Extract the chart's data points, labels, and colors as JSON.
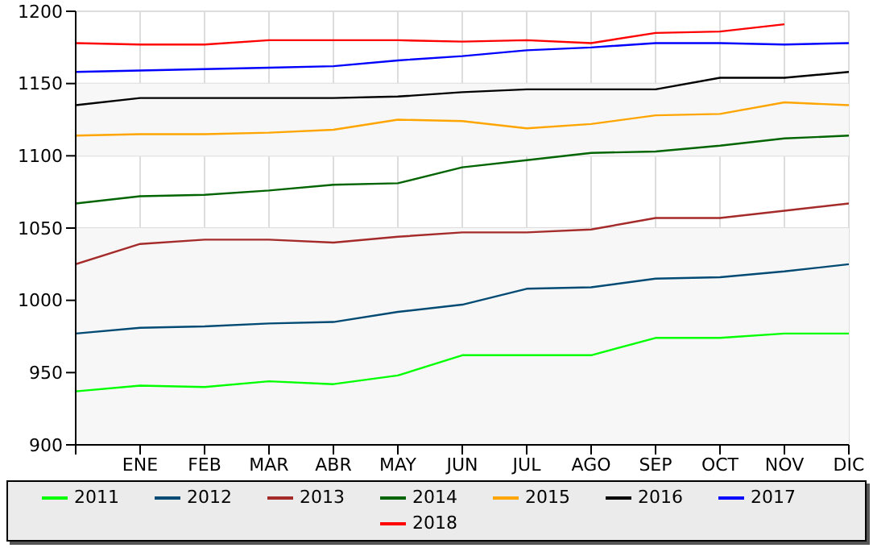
{
  "chart_data": {
    "type": "line",
    "categories": [
      null,
      "ENE",
      "FEB",
      "MAR",
      "ABR",
      "MAY",
      "JUN",
      "JUL",
      "AGO",
      "SEP",
      "OCT",
      "NOV",
      "DIC"
    ],
    "series": [
      {
        "name": "2011",
        "color": "#00ff00",
        "values": [
          937,
          941,
          940,
          944,
          942,
          948,
          962,
          962,
          962,
          974,
          974,
          977,
          977
        ]
      },
      {
        "name": "2012",
        "color": "#004a73",
        "values": [
          977,
          981,
          982,
          984,
          985,
          992,
          997,
          1008,
          1009,
          1015,
          1016,
          1020,
          1025
        ]
      },
      {
        "name": "2013",
        "color": "#a52a2a",
        "values": [
          1025,
          1039,
          1042,
          1042,
          1040,
          1044,
          1047,
          1047,
          1049,
          1057,
          1057,
          1062,
          1067
        ]
      },
      {
        "name": "2014",
        "color": "#006400",
        "values": [
          1067,
          1072,
          1073,
          1076,
          1080,
          1081,
          1092,
          1097,
          1102,
          1103,
          1107,
          1112,
          1114
        ]
      },
      {
        "name": "2015",
        "color": "#ffa500",
        "values": [
          1114,
          1115,
          1115,
          1116,
          1118,
          1125,
          1124,
          1119,
          1122,
          1128,
          1129,
          1137,
          1135
        ]
      },
      {
        "name": "2016",
        "color": "#000000",
        "values": [
          1135,
          1140,
          1140,
          1140,
          1140,
          1141,
          1144,
          1146,
          1146,
          1146,
          1154,
          1154,
          1158
        ]
      },
      {
        "name": "2017",
        "color": "#0000ff",
        "values": [
          1158,
          1159,
          1160,
          1161,
          1162,
          1166,
          1169,
          1173,
          1175,
          1178,
          1178,
          1177,
          1178
        ]
      },
      {
        "name": "2018",
        "color": "#ff0000",
        "values": [
          1178,
          1177,
          1177,
          1180,
          1180,
          1180,
          1179,
          1180,
          1178,
          1185,
          1186,
          1191,
          null
        ]
      }
    ],
    "ylim": [
      900,
      1200
    ],
    "yticks": [
      900,
      950,
      1000,
      1050,
      1100,
      1150,
      1200
    ],
    "bands": [
      {
        "axis": "y",
        "from": 900,
        "to": 1050,
        "color": "#f7f7f7"
      },
      {
        "axis": "y",
        "from": 1100,
        "to": 1150,
        "color": "#f7f7f7"
      }
    ],
    "grid": true,
    "legend": "bottom",
    "marker": "none",
    "line_style": "solid"
  }
}
